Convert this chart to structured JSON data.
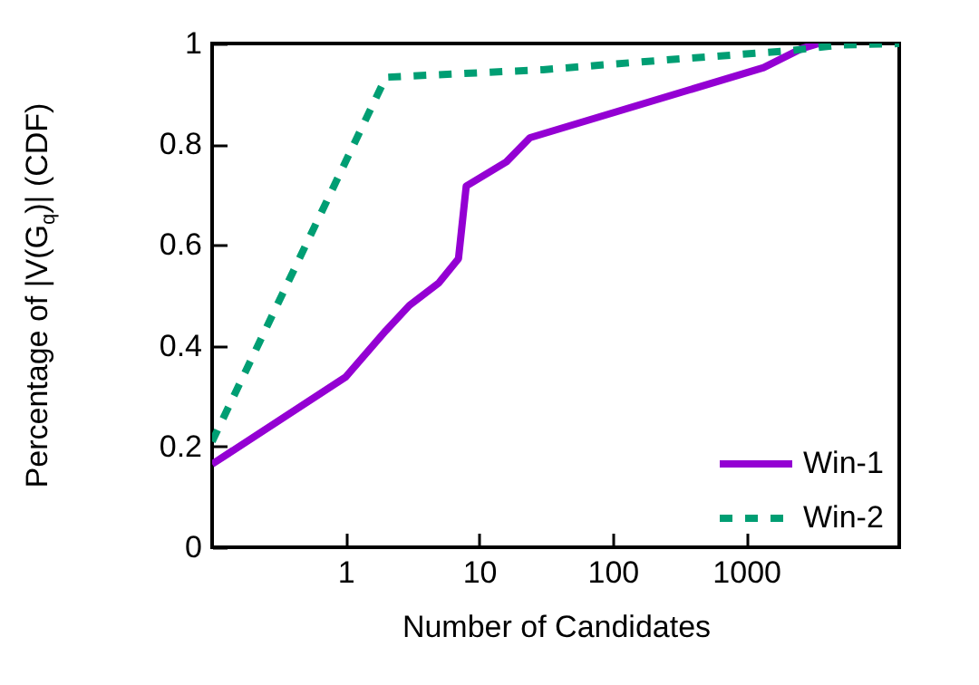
{
  "chart_data": {
    "type": "line",
    "xlabel": "Number of Candidates",
    "ylabel": "Percentage of |V(G$_{q}$)| (CDF)",
    "log": "x",
    "xlim": [
      0.1,
      14000
    ],
    "xticks": [
      1,
      10,
      100,
      1000
    ],
    "ylim": [
      0,
      1
    ],
    "yticks": [
      0,
      0.2,
      0.4,
      0.6,
      0.8,
      1
    ],
    "grid": false,
    "legend": "bottom right",
    "series": [
      {
        "name": "Win-1",
        "color": "#9400d3",
        "line_style": "solid",
        "x": [
          0.1,
          1,
          2,
          3,
          5,
          7,
          8,
          16,
          24,
          1350,
          2600,
          3500
        ],
        "values": [
          0.165,
          0.338,
          0.43,
          0.48,
          0.525,
          0.573,
          0.717,
          0.765,
          0.813,
          0.952,
          0.99,
          1.0
        ]
      },
      {
        "name": "Win-2",
        "color": "#009e73",
        "line_style": "dashed",
        "x": [
          0.1,
          2,
          30,
          300,
          2000,
          5000,
          14000
        ],
        "values": [
          0.21,
          0.933,
          0.948,
          0.969,
          0.985,
          0.997,
          1.0
        ]
      }
    ]
  }
}
